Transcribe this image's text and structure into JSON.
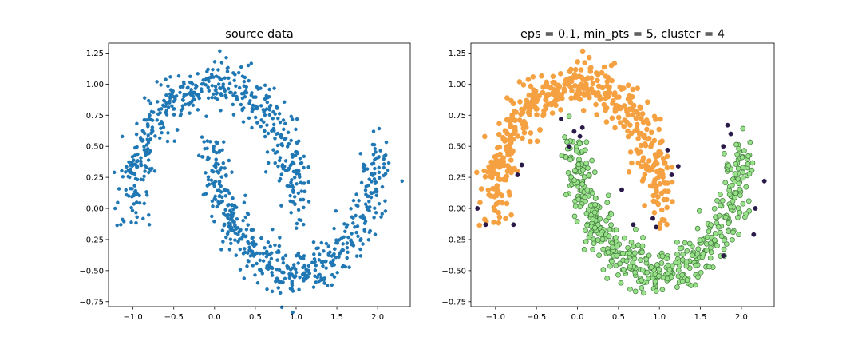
{
  "chart_data": [
    {
      "type": "scatter",
      "title": "source data",
      "xlabel": "",
      "ylabel": "",
      "xlim": [
        -1.3,
        2.4
      ],
      "ylim": [
        -0.79,
        1.33
      ],
      "xticks": [
        -1.0,
        -0.5,
        0.0,
        0.5,
        1.0,
        1.5,
        2.0
      ],
      "xtick_labels": [
        "−1.0",
        "−0.5",
        "0.0",
        "0.5",
        "1.0",
        "1.5",
        "2.0"
      ],
      "yticks": [
        -0.75,
        -0.5,
        -0.25,
        0.0,
        0.25,
        0.5,
        0.75,
        1.0,
        1.25
      ],
      "ytick_labels": [
        "−0.75",
        "−0.50",
        "−0.25",
        "0.00",
        "0.25",
        "0.50",
        "0.75",
        "1.00",
        "1.25"
      ],
      "grid": false,
      "series": [
        {
          "color": "#1f77b4",
          "n_points": 1000,
          "description_shape": "two interleaving half-moons",
          "upper_moon": {
            "center_x": 0.0,
            "center_y": 0.0,
            "radius": 1.0,
            "theta_range_deg": [
              0,
              180
            ]
          },
          "lower_moon": {
            "center_x": 1.0,
            "center_y": 0.5,
            "radius": 1.0,
            "theta_range_deg": [
              180,
              360
            ]
          },
          "noise": 0.1,
          "outliers": [
            [
              -1.15,
              -0.13
            ],
            [
              -0.8,
              -0.13
            ],
            [
              1.95,
              0.62
            ],
            [
              2.3,
              0.22
            ],
            [
              -1.22,
              0.0
            ]
          ]
        }
      ]
    },
    {
      "type": "scatter",
      "title": "eps = 0.1, min_pts = 5, cluster = 4",
      "xlabel": "",
      "ylabel": "",
      "xlim": [
        -1.3,
        2.4
      ],
      "ylim": [
        -0.79,
        1.33
      ],
      "xticks": [
        -1.0,
        -0.5,
        0.0,
        0.5,
        1.0,
        1.5,
        2.0
      ],
      "xtick_labels": [
        "−1.0",
        "−0.5",
        "0.0",
        "0.5",
        "1.0",
        "1.5",
        "2.0"
      ],
      "yticks": [
        -0.75,
        -0.5,
        -0.25,
        0.0,
        0.25,
        0.5,
        0.75,
        1.0,
        1.25
      ],
      "ytick_labels": [
        "−0.75",
        "−0.50",
        "−0.25",
        "0.00",
        "0.25",
        "0.50",
        "0.75",
        "1.00",
        "1.25"
      ],
      "grid": false,
      "series": [
        {
          "color": "#f5a142",
          "stroke": "#f5a142",
          "cluster": "upper moon"
        },
        {
          "color": "#98e089",
          "stroke": "#3f7a3a",
          "cluster": "lower moon"
        },
        {
          "color": "#2a1a4a",
          "stroke": "#2a1a4a",
          "cluster": "noise",
          "points": [
            [
              -1.12,
              -0.13
            ],
            [
              -0.78,
              -0.13
            ],
            [
              -0.68,
              0.35
            ],
            [
              -0.73,
              0.27
            ],
            [
              -0.2,
              0.72
            ],
            [
              -0.04,
              0.62
            ],
            [
              0.06,
              0.65
            ],
            [
              0.03,
              0.58
            ],
            [
              -0.1,
              0.5
            ],
            [
              1.1,
              0.47
            ],
            [
              1.23,
              0.34
            ],
            [
              1.15,
              0.27
            ],
            [
              0.54,
              0.15
            ],
            [
              0.68,
              -0.13
            ],
            [
              0.92,
              -0.08
            ],
            [
              0.96,
              -0.15
            ],
            [
              1.83,
              0.67
            ],
            [
              1.87,
              0.6
            ],
            [
              1.78,
              0.5
            ],
            [
              2.28,
              0.22
            ],
            [
              2.17,
              0.0
            ],
            [
              2.15,
              -0.21
            ],
            [
              1.78,
              -0.38
            ],
            [
              -1.22,
              0.0
            ]
          ]
        }
      ]
    }
  ]
}
